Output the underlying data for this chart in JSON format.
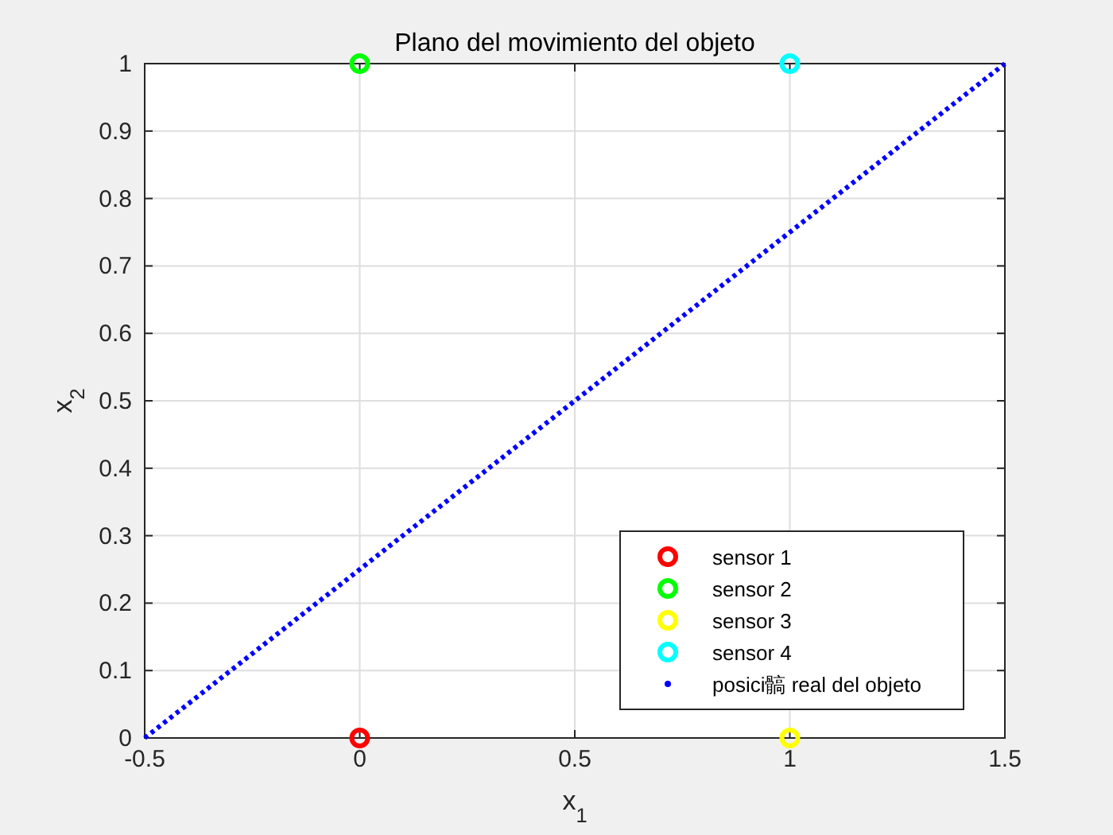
{
  "chart_data": {
    "type": "scatter",
    "title": "Plano del movimiento del objeto",
    "xlabel": "x$_{1}$",
    "ylabel": "x$_{2}$",
    "xlim": [
      -0.5,
      1.5
    ],
    "xticks": [
      -0.5,
      0,
      0.5,
      1,
      1.5
    ],
    "ylim": [
      0,
      1
    ],
    "yticks": [
      0,
      0.1,
      0.2,
      0.3,
      0.4,
      0.5,
      0.6,
      0.7,
      0.8,
      0.9,
      1
    ],
    "grid": true,
    "legend": "bottom right",
    "marker": "circle",
    "series": [
      {
        "name": "sensor 1",
        "color": "#ff0000",
        "x": [
          0
        ],
        "values": [
          0
        ]
      },
      {
        "name": "sensor 2",
        "color": "#00ff00",
        "x": [
          0
        ],
        "values": [
          1
        ]
      },
      {
        "name": "sensor 3",
        "color": "#ffff00",
        "x": [
          1
        ],
        "values": [
          0
        ]
      },
      {
        "name": "sensor 4",
        "color": "#00ffff",
        "x": [
          1
        ],
        "values": [
          1
        ]
      },
      {
        "name": "posici髇 real del objeto",
        "color": "#0000ff",
        "type": "line",
        "line_style": "dotted",
        "marker": "none",
        "x": [
          -0.5,
          1.5
        ],
        "values": [
          0,
          1
        ]
      }
    ]
  }
}
